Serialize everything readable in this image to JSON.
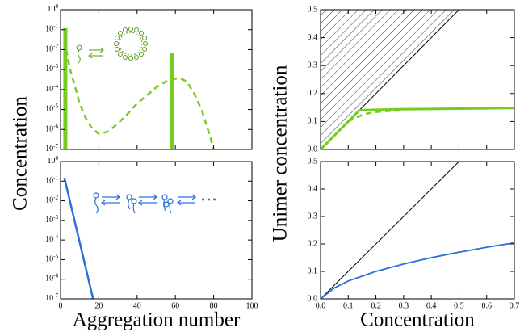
{
  "chart_data": [
    {
      "type": "line",
      "ylabel": "Concentration",
      "log_y": true,
      "xlim": [
        0,
        100
      ],
      "xticks": [
        0,
        20,
        40,
        60,
        80,
        100
      ],
      "xtick_labels": false,
      "ylim": [
        1e-07,
        1
      ],
      "yticks": [
        {
          "value": 1e-07,
          "label": "10",
          "exp": -7
        },
        {
          "value": 1e-06,
          "label": "10",
          "exp": -6
        },
        {
          "value": 1e-05,
          "label": "10",
          "exp": -5
        },
        {
          "value": 0.0001,
          "label": "10",
          "exp": -4
        },
        {
          "value": 0.001,
          "label": "10",
          "exp": -3
        },
        {
          "value": 0.01,
          "label": "10",
          "exp": -2
        },
        {
          "value": 0.1,
          "label": "10",
          "exp": -1
        },
        {
          "value": 1,
          "label": "10",
          "exp": 0
        }
      ],
      "series": [
        {
          "type": "bar",
          "color": "#77cc22",
          "x": [
            2.5,
            58
          ],
          "values": [
            0.12,
            0.007
          ]
        },
        {
          "type": "line",
          "style": "dashed",
          "color": "#77cc22",
          "x": [
            3,
            5,
            8,
            10,
            13,
            16,
            20,
            25,
            30,
            35,
            40,
            45,
            50,
            55,
            60,
            63,
            66,
            70,
            74,
            78,
            80
          ],
          "values": [
            0.01,
            0.001,
            0.0001,
            2e-05,
            4e-06,
            1.3e-06,
            6e-07,
            8e-07,
            2e-06,
            6e-06,
            2e-05,
            5e-05,
            0.00013,
            0.00025,
            0.00035,
            0.00035,
            0.00025,
            6e-05,
            8e-06,
            5e-07,
            1e-07
          ]
        }
      ]
    },
    {
      "type": "line",
      "ylabel": "Unimer concentration",
      "xlim": [
        0,
        0.7
      ],
      "xticks": [
        0,
        0.1,
        0.2,
        0.3,
        0.4,
        0.5,
        0.6,
        0.7
      ],
      "xtick_labels": false,
      "ylim": [
        0,
        0.5
      ],
      "yticks": [
        {
          "value": 0,
          "label": "0.0"
        },
        0.1,
        0.2,
        0.3,
        0.4,
        0.5
      ],
      "series": [
        {
          "type": "region",
          "color": "#000000",
          "x": [
            0,
            0.5
          ],
          "values": [
            0,
            0.5
          ]
        },
        {
          "type": "line",
          "color": "#77cc22",
          "width": 3,
          "x": [
            0,
            0.14,
            0.2,
            0.3,
            0.4,
            0.5,
            0.6,
            0.7
          ],
          "values": [
            0,
            0.14,
            0.142,
            0.144,
            0.145,
            0.146,
            0.147,
            0.148
          ]
        },
        {
          "type": "line",
          "style": "dashed",
          "color": "#77cc22",
          "x": [
            0.1,
            0.13,
            0.16,
            0.2,
            0.25,
            0.3
          ],
          "values": [
            0.1,
            0.115,
            0.127,
            0.134,
            0.138,
            0.14
          ]
        }
      ]
    },
    {
      "type": "line",
      "xlabel": "Aggregation number",
      "log_y": true,
      "xlim": [
        0,
        100
      ],
      "xticks": [
        0,
        20,
        40,
        60,
        80,
        100
      ],
      "xtick_labels": true,
      "ylim": [
        1e-07,
        1
      ],
      "yticks": [
        {
          "value": 1e-07,
          "label": "10",
          "exp": -7
        },
        {
          "value": 1e-06,
          "label": "10",
          "exp": -6
        },
        {
          "value": 1e-05,
          "label": "10",
          "exp": -5
        },
        {
          "value": 0.0001,
          "label": "10",
          "exp": -4
        },
        {
          "value": 0.001,
          "label": "10",
          "exp": -3
        },
        {
          "value": 0.01,
          "label": "10",
          "exp": -2
        },
        {
          "value": 0.1,
          "label": "10",
          "exp": -1
        },
        {
          "value": 1,
          "label": "10",
          "exp": 0
        }
      ],
      "series": [
        {
          "type": "line",
          "color": "#2a6fdb",
          "width": 2.5,
          "x": [
            2,
            17
          ],
          "values": [
            0.15,
            1e-07
          ]
        }
      ]
    },
    {
      "type": "line",
      "xlabel": "Concentration",
      "xlim": [
        0,
        0.7
      ],
      "xticks": [
        {
          "value": 0,
          "label": "0.0"
        },
        0.1,
        0.2,
        0.3,
        0.4,
        0.5,
        0.6,
        0.7
      ],
      "xtick_labels": true,
      "ylim": [
        0,
        0.5
      ],
      "yticks": [
        {
          "value": 0,
          "label": "0.0"
        },
        0.1,
        0.2,
        0.3,
        0.4,
        0.5
      ],
      "series": [
        {
          "type": "line",
          "color": "#000000",
          "width": 1,
          "x": [
            0,
            0.5
          ],
          "values": [
            0,
            0.5
          ]
        },
        {
          "type": "line",
          "color": "#2a6fdb",
          "width": 1.8,
          "x": [
            0,
            0.05,
            0.1,
            0.2,
            0.3,
            0.4,
            0.5,
            0.6,
            0.7
          ],
          "values": [
            0,
            0.04,
            0.065,
            0.1,
            0.127,
            0.15,
            0.17,
            0.188,
            0.204
          ]
        }
      ]
    }
  ]
}
